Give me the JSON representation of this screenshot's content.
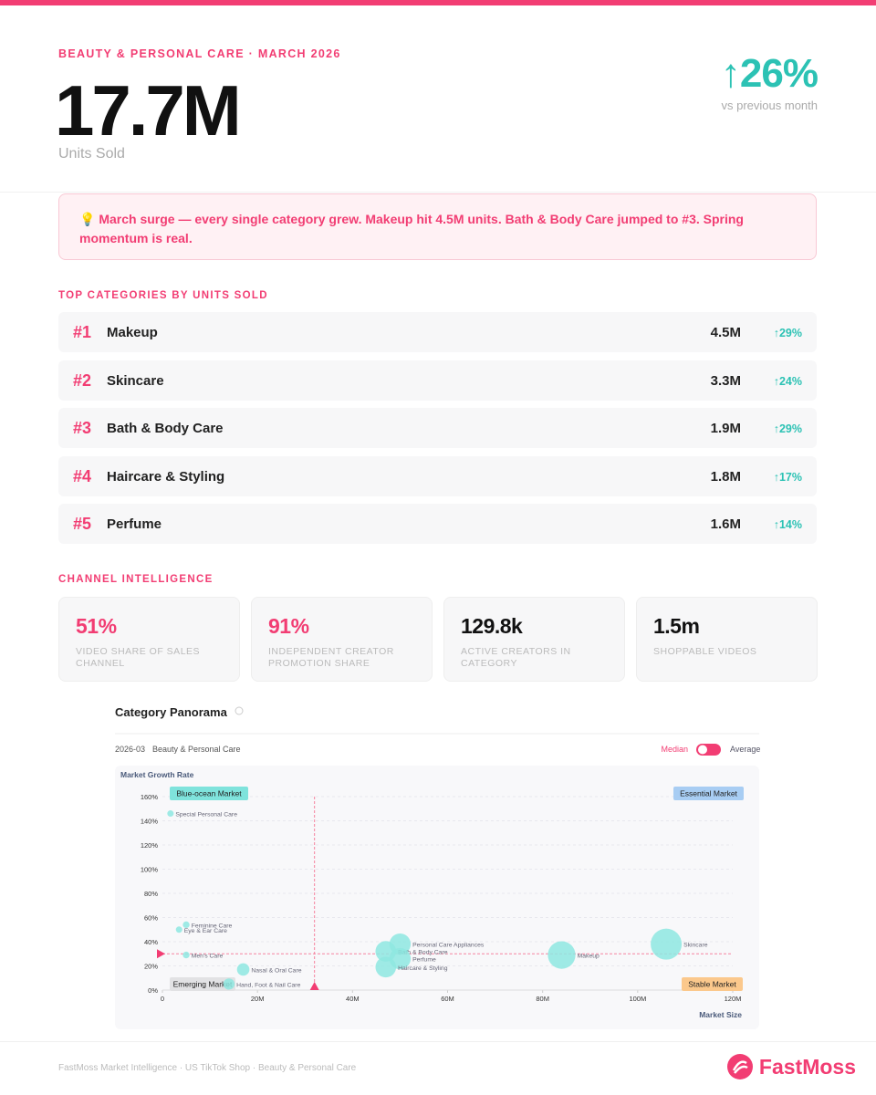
{
  "header": {
    "eyebrow": "BEAUTY & PERSONAL CARE · MARCH 2026",
    "value": "17.7M",
    "label": "Units Sold",
    "change": "↑26%",
    "change_label": "vs previous month"
  },
  "insight": "💡 March surge — every single category grew. Makeup hit 4.5M units. Bath & Body Care jumped to #3. Spring momentum is real.",
  "top_categories": {
    "title": "TOP CATEGORIES BY UNITS SOLD",
    "rows": [
      {
        "rank": "#1",
        "name": "Makeup",
        "units": "4.5M",
        "change": "↑29%"
      },
      {
        "rank": "#2",
        "name": "Skincare",
        "units": "3.3M",
        "change": "↑24%"
      },
      {
        "rank": "#3",
        "name": "Bath & Body Care",
        "units": "1.9M",
        "change": "↑29%"
      },
      {
        "rank": "#4",
        "name": "Haircare & Styling",
        "units": "1.8M",
        "change": "↑17%"
      },
      {
        "rank": "#5",
        "name": "Perfume",
        "units": "1.6M",
        "change": "↑14%"
      }
    ]
  },
  "channel": {
    "title": "CHANNEL INTELLIGENCE",
    "cards": [
      {
        "value": "51%",
        "label": "VIDEO SHARE OF SALES CHANNEL"
      },
      {
        "value": "91%",
        "label": "INDEPENDENT CREATOR PROMOTION SHARE"
      },
      {
        "value": "129.8k",
        "label": "ACTIVE CREATORS IN CATEGORY"
      },
      {
        "value": "1.5m",
        "label": "SHOPPABLE VIDEOS"
      }
    ]
  },
  "chart_data": {
    "type": "scatter",
    "title": "Category Panorama",
    "period": "2026-03",
    "category": "Beauty & Personal Care",
    "toggle_left": "Median",
    "toggle_right": "Average",
    "ylabel": "Market Growth Rate",
    "xlabel": "Market Size",
    "quadrants": [
      "Blue-ocean Market",
      "Essential Market",
      "Emerging Market",
      "Stable Market"
    ],
    "color": "#8ee8e0",
    "labels": [
      "Special Personal Care",
      "Feminine Care",
      "Eye & Ear Care",
      "Men's Care",
      "Nasal & Oral Care",
      "Hand, Foot & Nail Care",
      "Personal Care Appliances",
      "Bath & Body Care",
      "Perfume",
      "Haircare & Styling",
      "Makeup",
      "Skincare"
    ],
    "x": [
      1.7,
      5,
      3.5,
      5,
      17,
      14,
      50,
      47,
      50,
      47,
      84,
      106
    ],
    "values": [
      146,
      54,
      50,
      29,
      17,
      5,
      38,
      32,
      26,
      19,
      29,
      38
    ],
    "median_x": 32,
    "median_y": 30,
    "xlim": [
      0,
      120
    ],
    "ylim": [
      0,
      160
    ],
    "xticks": [
      0,
      {
        "value": 20,
        "label": "20M"
      },
      {
        "value": 40,
        "label": "40M"
      },
      {
        "value": 60,
        "label": "60M"
      },
      {
        "value": 80,
        "label": "80M"
      },
      {
        "value": 100,
        "label": "100M"
      },
      {
        "value": 120,
        "label": "120M"
      }
    ],
    "yticks": [
      {
        "value": 0,
        "label": "0%"
      },
      {
        "value": 20,
        "label": "20%"
      },
      {
        "value": 40,
        "label": "40%"
      },
      {
        "value": 60,
        "label": "60%"
      },
      {
        "value": 80,
        "label": "80%"
      },
      {
        "value": 100,
        "label": "100%"
      },
      {
        "value": 120,
        "label": "120%"
      },
      {
        "value": 140,
        "label": "140%"
      },
      {
        "value": 160,
        "label": "160%"
      }
    ],
    "grid": true
  },
  "footer": {
    "text": "FastMoss Market Intelligence · US TikTok Shop · Beauty & Personal Care",
    "logo": "FastMoss"
  }
}
